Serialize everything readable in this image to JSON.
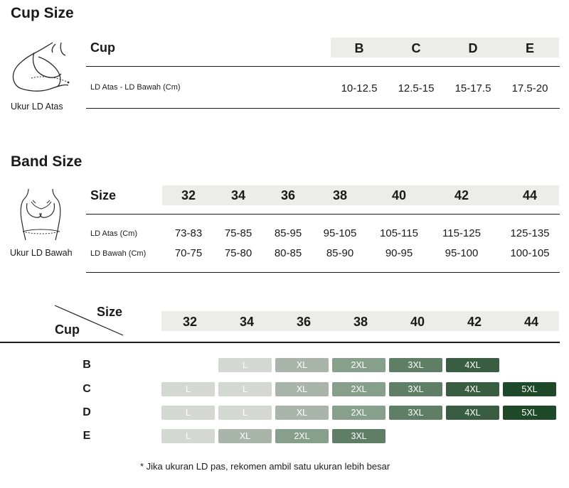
{
  "colors": {
    "L": "#d3d8d3",
    "XL": "#a9b4aa",
    "2XL": "#86a08b",
    "3XL": "#5f7e66",
    "4XL": "#385d41",
    "5XL": "#1f4a2a",
    "header_bg": "#ececea"
  },
  "cup_section": {
    "title": "Cup Size",
    "icon": "bust-measure-top-icon",
    "caption": "Ukur LD Atas",
    "header_label": "Cup",
    "columns": [
      "B",
      "C",
      "D",
      "E"
    ],
    "row_label": "LD Atas - LD Bawah (Cm)",
    "values": [
      "10-12.5",
      "12.5-15",
      "15-17.5",
      "17.5-20"
    ]
  },
  "band_section": {
    "title": "Band Size",
    "icon": "bust-measure-under-icon",
    "caption": "Ukur LD Bawah",
    "header_label": "Size",
    "columns": [
      "32",
      "34",
      "36",
      "38",
      "40",
      "42",
      "44"
    ],
    "rows": [
      {
        "label": "LD Atas (Cm)",
        "values": [
          "73-83",
          "75-85",
          "85-95",
          "95-105",
          "105-115",
          "115-125",
          "125-135"
        ]
      },
      {
        "label": "LD Bawah (Cm)",
        "values": [
          "70-75",
          "75-80",
          "80-85",
          "85-90",
          "90-95",
          "95-100",
          "100-105"
        ]
      }
    ]
  },
  "matrix": {
    "size_label": "Size",
    "cup_label": "Cup",
    "columns": [
      "32",
      "34",
      "36",
      "38",
      "40",
      "42",
      "44"
    ],
    "rows": [
      {
        "cup": "B",
        "sizes": [
          null,
          "L",
          "XL",
          "2XL",
          "3XL",
          "4XL",
          null
        ]
      },
      {
        "cup": "C",
        "sizes": [
          "L",
          "L",
          "XL",
          "2XL",
          "3XL",
          "4XL",
          "5XL"
        ]
      },
      {
        "cup": "D",
        "sizes": [
          "L",
          "L",
          "XL",
          "2XL",
          "3XL",
          "4XL",
          "5XL"
        ]
      },
      {
        "cup": "E",
        "sizes": [
          "L",
          "XL",
          "2XL",
          "3XL",
          null,
          null,
          null
        ]
      }
    ]
  },
  "footnote": "* Jika ukuran LD pas, rekomen ambil satu ukuran lebih besar"
}
